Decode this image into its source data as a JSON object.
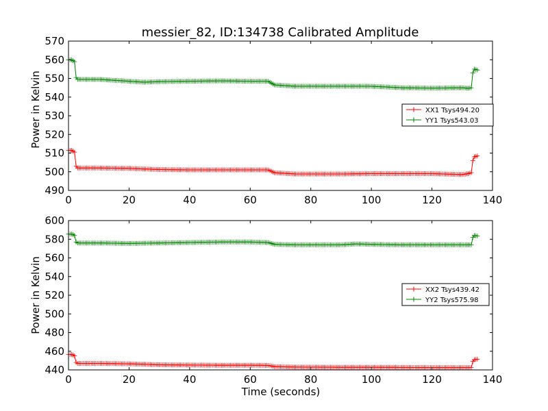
{
  "chart_data": [
    {
      "type": "line",
      "title": "messier_82, ID:134738 Calibrated Amplitude",
      "xlabel": "",
      "ylabel": "Power in Kelvin",
      "xlim": [
        0,
        140
      ],
      "ylim": [
        490,
        570
      ],
      "xticks": [
        "0",
        "20",
        "40",
        "60",
        "80",
        "100",
        "120",
        "140"
      ],
      "yticks": [
        "490",
        "500",
        "510",
        "520",
        "530",
        "540",
        "550",
        "560",
        "570"
      ],
      "grid": false,
      "legend": "center-right",
      "series": [
        {
          "name": "XX1 Tsys494.20",
          "color": "#ff0000",
          "points": [
            [
              0,
              511.5
            ],
            [
              1,
              511.5
            ],
            [
              1.5,
              511
            ],
            [
              2,
              510.5
            ],
            [
              2.5,
              503
            ],
            [
              3,
              502
            ],
            [
              10,
              502
            ],
            [
              20,
              501.8
            ],
            [
              30,
              501.2
            ],
            [
              40,
              501
            ],
            [
              50,
              501
            ],
            [
              60,
              501
            ],
            [
              66,
              501
            ],
            [
              68,
              499.5
            ],
            [
              75,
              498.8
            ],
            [
              90,
              498.8
            ],
            [
              100,
              499
            ],
            [
              120,
              499
            ],
            [
              130,
              498.5
            ],
            [
              132,
              499
            ],
            [
              133,
              499.5
            ],
            [
              133.5,
              506
            ],
            [
              134,
              508
            ],
            [
              135,
              508.5
            ]
          ]
        },
        {
          "name": "YY1 Tsys543.03",
          "color": "#008000",
          "points": [
            [
              0,
              560
            ],
            [
              1,
              560
            ],
            [
              1.5,
              559.5
            ],
            [
              2,
              559
            ],
            [
              2.5,
              550.5
            ],
            [
              3,
              549.5
            ],
            [
              10,
              549.5
            ],
            [
              20,
              548.5
            ],
            [
              25,
              548
            ],
            [
              30,
              548.3
            ],
            [
              40,
              548.5
            ],
            [
              50,
              548.7
            ],
            [
              60,
              548.5
            ],
            [
              66,
              548.5
            ],
            [
              68,
              546.5
            ],
            [
              75,
              545.8
            ],
            [
              90,
              545.8
            ],
            [
              100,
              545.8
            ],
            [
              110,
              545
            ],
            [
              120,
              544.8
            ],
            [
              130,
              545
            ],
            [
              132,
              544.7
            ],
            [
              133,
              545
            ],
            [
              133.5,
              553
            ],
            [
              134,
              555
            ],
            [
              135,
              554.5
            ]
          ]
        }
      ]
    },
    {
      "type": "line",
      "title": "",
      "xlabel": "Time (seconds)",
      "ylabel": "Power in Kelvin",
      "xlim": [
        0,
        140
      ],
      "ylim": [
        440,
        600
      ],
      "xticks": [
        "0",
        "20",
        "40",
        "60",
        "80",
        "100",
        "120",
        "140"
      ],
      "yticks": [
        "440",
        "460",
        "480",
        "500",
        "520",
        "540",
        "560",
        "580",
        "600"
      ],
      "grid": false,
      "legend": "center-right",
      "series": [
        {
          "name": "XX2 Tsys439.42",
          "color": "#ff0000",
          "points": [
            [
              0,
              456.5
            ],
            [
              1,
              456.5
            ],
            [
              1.5,
              456
            ],
            [
              2,
              455
            ],
            [
              2.5,
              448
            ],
            [
              3,
              447
            ],
            [
              10,
              447
            ],
            [
              20,
              446.5
            ],
            [
              30,
              445.5
            ],
            [
              40,
              445.2
            ],
            [
              50,
              445
            ],
            [
              60,
              445
            ],
            [
              66,
              444.8
            ],
            [
              68,
              443.5
            ],
            [
              75,
              443
            ],
            [
              90,
              442.8
            ],
            [
              100,
              442.8
            ],
            [
              120,
              442.5
            ],
            [
              130,
              442.5
            ],
            [
              133,
              442.5
            ],
            [
              133.5,
              449
            ],
            [
              134,
              451
            ],
            [
              135,
              451.5
            ]
          ]
        },
        {
          "name": "YY2 Tsys575.98",
          "color": "#008000",
          "points": [
            [
              0,
              585.5
            ],
            [
              1,
              585.5
            ],
            [
              1.5,
              585
            ],
            [
              2,
              584
            ],
            [
              2.5,
              577
            ],
            [
              3,
              576
            ],
            [
              10,
              576
            ],
            [
              20,
              575.5
            ],
            [
              30,
              576
            ],
            [
              40,
              576.5
            ],
            [
              50,
              577
            ],
            [
              60,
              577
            ],
            [
              66,
              576.5
            ],
            [
              68,
              574.5
            ],
            [
              75,
              574
            ],
            [
              90,
              574
            ],
            [
              95,
              575
            ],
            [
              100,
              574.5
            ],
            [
              110,
              574
            ],
            [
              120,
              574
            ],
            [
              130,
              574
            ],
            [
              133,
              574
            ],
            [
              133.5,
              582
            ],
            [
              134,
              584
            ],
            [
              135,
              583.5
            ]
          ]
        }
      ]
    }
  ]
}
